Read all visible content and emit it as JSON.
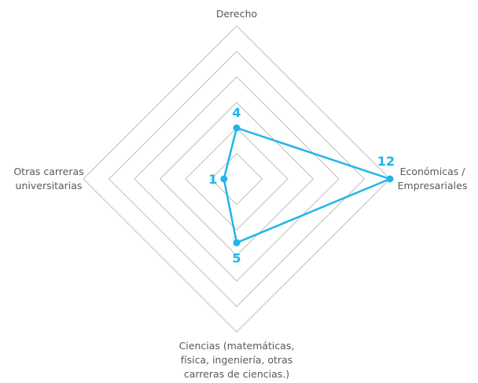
{
  "chart_data": {
    "type": "radar",
    "title": "",
    "categories": [
      [
        "Derecho"
      ],
      [
        "Económicas /",
        "Empresariales"
      ],
      [
        "Ciencias (matemáticas,",
        "física, ingeniería, otras",
        "carreras de ciencias.)"
      ],
      [
        "Otras carreras",
        "universitarias"
      ]
    ],
    "series": [
      {
        "values": [
          4,
          12,
          5,
          1
        ],
        "data_labels": [
          "4",
          "12",
          "5",
          "1"
        ]
      }
    ],
    "rlim": [
      0,
      12
    ],
    "grid_levels": 6,
    "grid_shape": "polygon",
    "legend": "none",
    "colors": {
      "series": "#1fb5ea",
      "grid": "#bfbfbf",
      "label": "#595959"
    }
  }
}
